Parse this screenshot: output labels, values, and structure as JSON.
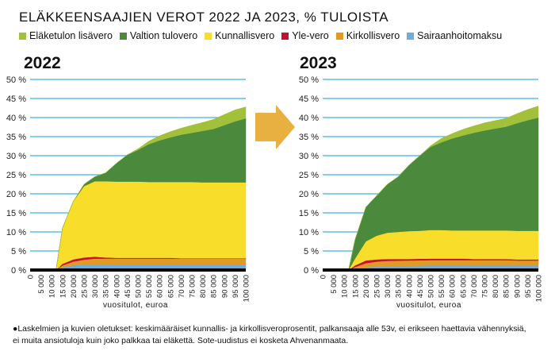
{
  "title": "ELÄKKEENSAAJIEN VEROT 2022 JA 2023, % TULOISTA",
  "legend": [
    {
      "label": "Eläketulon lisävero",
      "color": "#a2c03a"
    },
    {
      "label": "Valtion tulovero",
      "color": "#4b8a3d"
    },
    {
      "label": "Kunnallisvero",
      "color": "#f8dd2b"
    },
    {
      "label": "Yle-vero",
      "color": "#c8102e"
    },
    {
      "label": "Kirkollisvero",
      "color": "#e39a25"
    },
    {
      "label": "Sairaanhoitomaksu",
      "color": "#6aaee2"
    }
  ],
  "arrow_color": "#e8b040",
  "grid_color": "#3bb4e8",
  "footnote": [
    "●Laskelmien ja kuvien oletukset: keskimääräiset kunnallis- ja kirkollisveroprosentit, palkansaaja alle 53v, ei erikseen haettavia vähennyksiä,",
    "ei muita ansiotuloja kuin joko palkkaa tai eläkettä. Sote-uudistus ei kosketa Ahvenanmaata."
  ],
  "chart_data": [
    {
      "type": "area",
      "stacked": true,
      "title": "2022",
      "xlabel": "vuositulot, euroa",
      "ylabel": "",
      "ylim": [
        0,
        50
      ],
      "xlim": [
        0,
        100000
      ],
      "yticks": [
        "0 %",
        "5 %",
        "10 %",
        "15 %",
        "20 %",
        "25 %",
        "30 %",
        "35 %",
        "40 %",
        "45 %",
        "50 %"
      ],
      "xticks": [
        "0",
        "5 000",
        "10 000",
        "15 000",
        "20 000",
        "25 000",
        "30 000",
        "35 000",
        "40 000",
        "45 000",
        "50 000",
        "55 000",
        "60 000",
        "65 000",
        "70 000",
        "75 000",
        "80 000",
        "85 000",
        "90 000",
        "95 000",
        "100 000"
      ],
      "grid": true,
      "x": [
        0,
        5000,
        10000,
        12000,
        15000,
        20000,
        25000,
        30000,
        35000,
        40000,
        45000,
        50000,
        55000,
        60000,
        65000,
        70000,
        75000,
        80000,
        85000,
        90000,
        95000,
        100000
      ],
      "series": [
        {
          "name": "Sairaanhoitomaksu",
          "values": [
            0,
            0,
            0,
            0,
            0.7,
            1.2,
            1.5,
            1.5,
            1.5,
            1.5,
            1.5,
            1.5,
            1.5,
            1.5,
            1.5,
            1.5,
            1.5,
            1.5,
            1.5,
            1.5,
            1.5,
            1.5
          ]
        },
        {
          "name": "Kirkollisvero",
          "values": [
            0,
            0,
            0,
            0,
            0.5,
            1.0,
            1.2,
            1.5,
            1.5,
            1.5,
            1.5,
            1.5,
            1.5,
            1.5,
            1.5,
            1.5,
            1.5,
            1.5,
            1.5,
            1.5,
            1.5,
            1.5
          ]
        },
        {
          "name": "Yle-vero",
          "values": [
            0,
            0,
            0,
            0,
            0.4,
            0.6,
            0.6,
            0.5,
            0.3,
            0.2,
            0.2,
            0.2,
            0.2,
            0.2,
            0.2,
            0.1,
            0.1,
            0.1,
            0.1,
            0.1,
            0.1,
            0.1
          ]
        },
        {
          "name": "Kunnallisvero",
          "values": [
            0,
            0,
            0,
            0,
            9.4,
            15.2,
            18.7,
            19.8,
            20.0,
            20.0,
            20.0,
            20.0,
            19.9,
            19.9,
            19.9,
            20.0,
            20.0,
            19.9,
            19.9,
            19.9,
            19.9,
            19.9
          ]
        },
        {
          "name": "Valtion tulovero",
          "values": [
            0,
            0,
            0,
            0,
            0,
            0,
            0.5,
            1.2,
            2.2,
            4.8,
            7.0,
            8.3,
            9.9,
            10.9,
            11.7,
            12.4,
            12.9,
            13.5,
            14.0,
            15.0,
            16.0,
            16.8
          ]
        },
        {
          "name": "Eläketulon lisävero",
          "values": [
            0,
            0,
            0,
            0,
            0,
            0,
            0,
            0,
            0,
            0,
            0,
            0.3,
            0.8,
            1.2,
            1.5,
            1.7,
            2.0,
            2.2,
            2.5,
            2.8,
            3.0,
            3.0
          ]
        }
      ]
    },
    {
      "type": "area",
      "stacked": true,
      "title": "2023",
      "xlabel": "vuositulot, euroa",
      "ylabel": "",
      "ylim": [
        0,
        50
      ],
      "xlim": [
        0,
        100000
      ],
      "yticks": [
        "0 %",
        "5 %",
        "10 %",
        "15 %",
        "20 %",
        "25 %",
        "30 %",
        "35 %",
        "40 %",
        "45 %",
        "50 %"
      ],
      "xticks": [
        "0",
        "5 000",
        "10 000",
        "15 000",
        "20 000",
        "25 000",
        "30 000",
        "35 000",
        "40 000",
        "45 000",
        "50 000",
        "55 000",
        "60 000",
        "65 000",
        "70 000",
        "75 000",
        "80 000",
        "85 000",
        "90 000",
        "95 000",
        "100 000"
      ],
      "grid": true,
      "x": [
        0,
        5000,
        10000,
        12000,
        15000,
        20000,
        25000,
        30000,
        35000,
        40000,
        45000,
        50000,
        55000,
        60000,
        65000,
        70000,
        75000,
        80000,
        85000,
        90000,
        95000,
        100000
      ],
      "series": [
        {
          "name": "Sairaanhoitomaksu",
          "values": [
            0,
            0,
            0,
            0,
            0.3,
            0.7,
            0.9,
            1.0,
            1.05,
            1.1,
            1.15,
            1.2,
            1.2,
            1.2,
            1.2,
            1.2,
            1.2,
            1.2,
            1.2,
            1.2,
            1.2,
            1.2
          ]
        },
        {
          "name": "Kirkollisvero",
          "values": [
            0,
            0,
            0,
            0,
            0.5,
            1.1,
            1.3,
            1.4,
            1.4,
            1.4,
            1.4,
            1.4,
            1.4,
            1.4,
            1.4,
            1.4,
            1.4,
            1.4,
            1.4,
            1.3,
            1.3,
            1.3
          ]
        },
        {
          "name": "Yle-vero",
          "values": [
            0,
            0,
            0,
            0,
            0.4,
            0.7,
            0.6,
            0.5,
            0.45,
            0.4,
            0.4,
            0.4,
            0.4,
            0.4,
            0.4,
            0.3,
            0.3,
            0.3,
            0.3,
            0.3,
            0.3,
            0.3
          ]
        },
        {
          "name": "Kunnallisvero",
          "values": [
            0,
            0,
            0,
            0,
            1.8,
            5.0,
            6.2,
            6.9,
            7.1,
            7.3,
            7.35,
            7.5,
            7.5,
            7.4,
            7.4,
            7.5,
            7.5,
            7.5,
            7.5,
            7.5,
            7.5,
            7.5
          ]
        },
        {
          "name": "Valtion tulovero",
          "values": [
            0,
            0,
            0,
            0,
            5.0,
            9.0,
            10.5,
            12.7,
            14.5,
            17.3,
            19.7,
            21.8,
            23.0,
            24.1,
            24.9,
            25.6,
            26.2,
            26.7,
            27.2,
            28.2,
            29.0,
            29.7
          ]
        },
        {
          "name": "Eläketulon lisävero",
          "values": [
            0,
            0,
            0,
            0,
            0,
            0,
            0,
            0,
            0,
            0,
            0,
            0.3,
            1.0,
            1.3,
            1.6,
            1.8,
            2.0,
            2.1,
            2.2,
            2.5,
            2.8,
            3.0
          ]
        }
      ]
    }
  ]
}
